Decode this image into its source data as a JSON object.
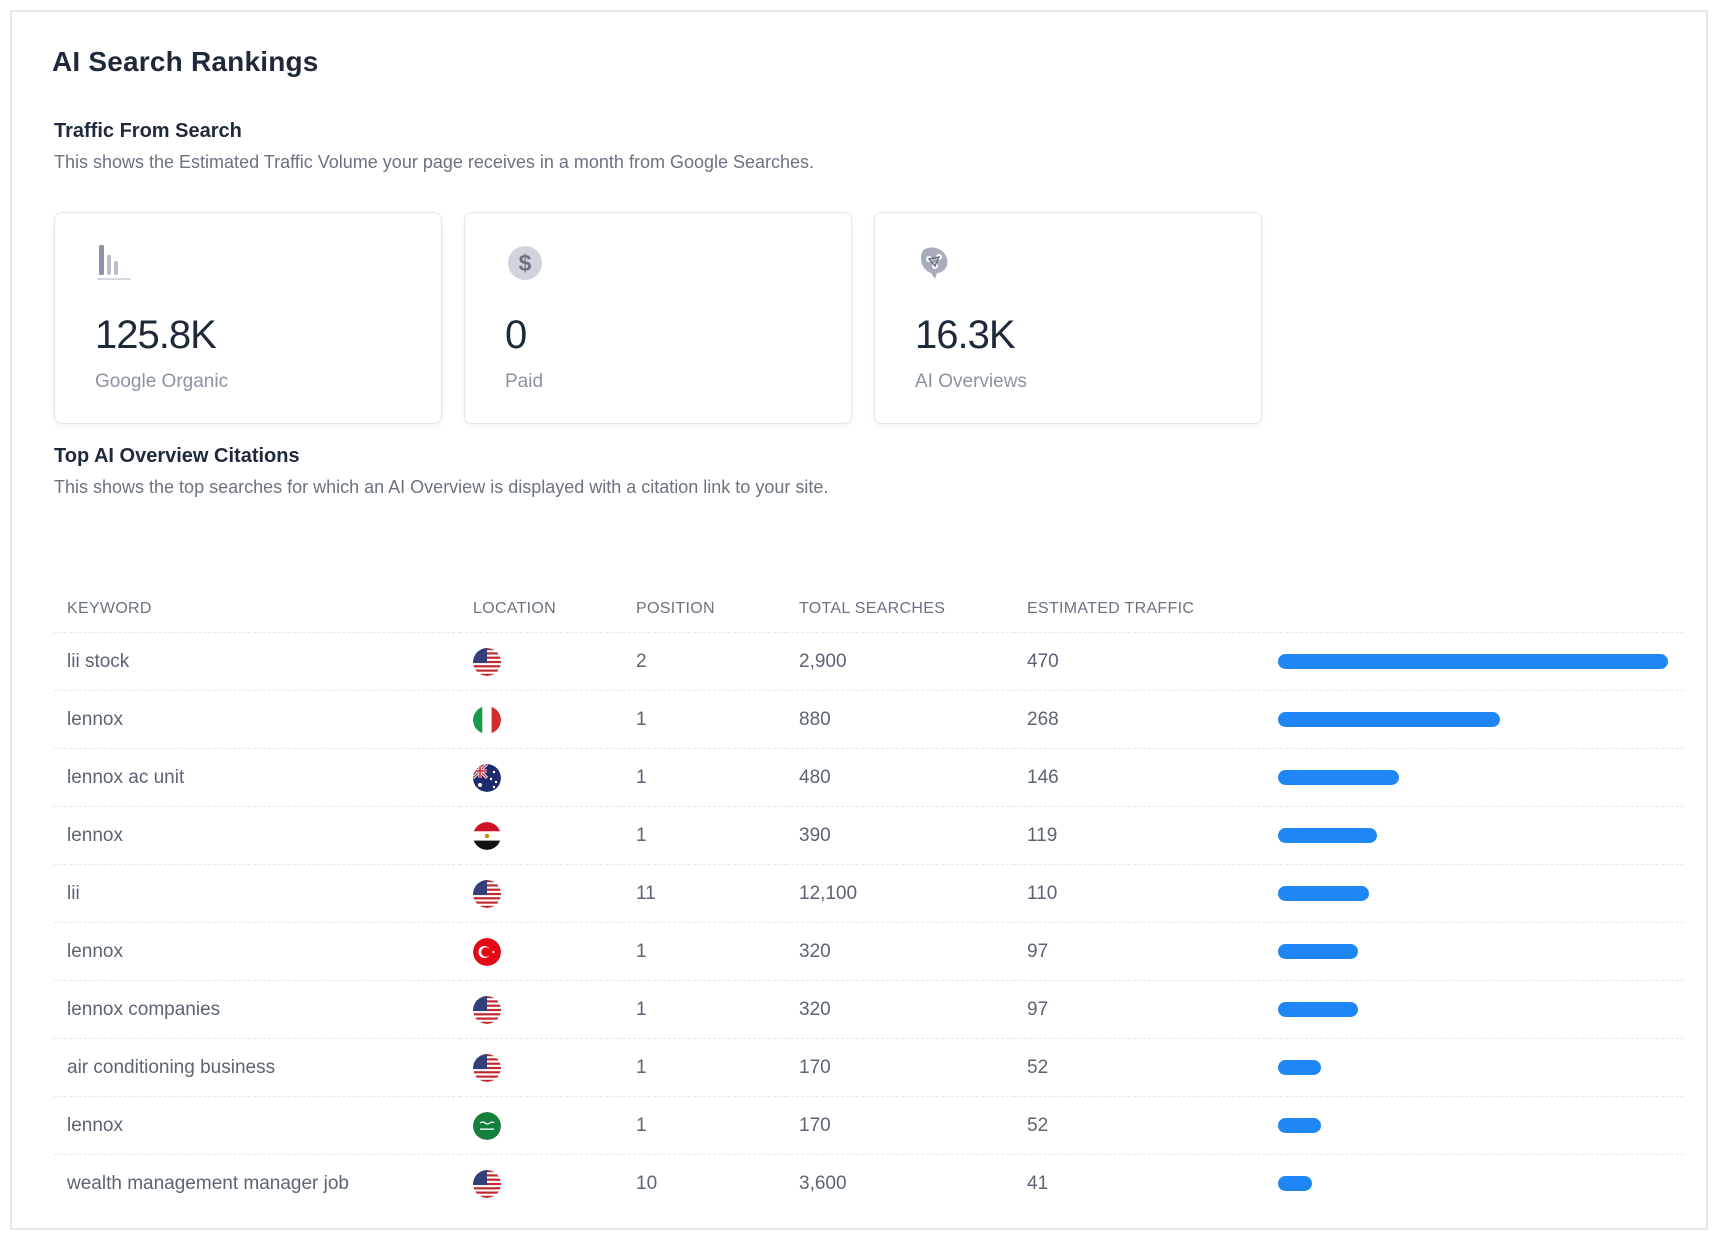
{
  "page_title": "AI Search Rankings",
  "traffic": {
    "title": "Traffic From Search",
    "description": "This shows the Estimated Traffic Volume your page receives in a month from Google Searches.",
    "cards": [
      {
        "icon": "bar-chart-icon",
        "value": "125.8K",
        "label": "Google Organic"
      },
      {
        "icon": "dollar-icon",
        "value": "0",
        "label": "Paid"
      },
      {
        "icon": "ai-brain-icon",
        "value": "16.3K",
        "label": "AI Overviews"
      }
    ]
  },
  "citations": {
    "title": "Top AI Overview Citations",
    "description": "This shows the top searches for which an AI Overview is displayed with a citation link to your site.",
    "columns": [
      "KEYWORD",
      "LOCATION",
      "POSITION",
      "TOTAL SEARCHES",
      "ESTIMATED TRAFFIC"
    ],
    "bar_color": "#1f87f5",
    "rows": [
      {
        "keyword": "lii stock",
        "flag": "us-flag-icon",
        "position": "2",
        "searches": "2,900",
        "traffic": "470",
        "share": 1.0
      },
      {
        "keyword": "lennox",
        "flag": "italy-flag-icon",
        "position": "1",
        "searches": "880",
        "traffic": "268",
        "share": 0.57
      },
      {
        "keyword": "lennox ac unit",
        "flag": "australia-flag-icon",
        "position": "1",
        "searches": "480",
        "traffic": "146",
        "share": 0.311
      },
      {
        "keyword": "lennox",
        "flag": "egypt-flag-icon",
        "position": "1",
        "searches": "390",
        "traffic": "119",
        "share": 0.253
      },
      {
        "keyword": "lii",
        "flag": "us-flag-icon",
        "position": "11",
        "searches": "12,100",
        "traffic": "110",
        "share": 0.234
      },
      {
        "keyword": "lennox",
        "flag": "turkey-flag-icon",
        "position": "1",
        "searches": "320",
        "traffic": "97",
        "share": 0.206
      },
      {
        "keyword": "lennox companies",
        "flag": "us-flag-icon",
        "position": "1",
        "searches": "320",
        "traffic": "97",
        "share": 0.206
      },
      {
        "keyword": "air conditioning business",
        "flag": "us-flag-icon",
        "position": "1",
        "searches": "170",
        "traffic": "52",
        "share": 0.111
      },
      {
        "keyword": "lennox",
        "flag": "saudi-flag-icon",
        "position": "1",
        "searches": "170",
        "traffic": "52",
        "share": 0.111
      },
      {
        "keyword": "wealth management manager job",
        "flag": "us-flag-icon",
        "position": "10",
        "searches": "3,600",
        "traffic": "41",
        "share": 0.087
      }
    ]
  }
}
